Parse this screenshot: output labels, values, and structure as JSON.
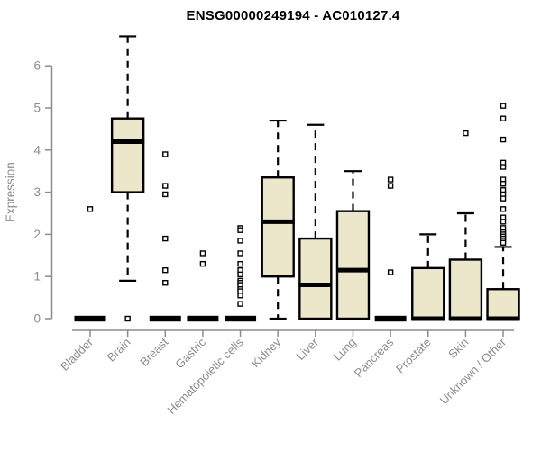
{
  "title": "ENSG00000249194 - AC010127.4",
  "chart_data": {
    "type": "boxplot",
    "title": "ENSG00000249194 - AC010127.4",
    "xlabel": "",
    "ylabel": "Expression",
    "ylim": [
      0,
      6.7
    ],
    "yticks": [
      0,
      1,
      2,
      3,
      4,
      5,
      6
    ],
    "grid": false,
    "legend": false,
    "categories": [
      "Bladder",
      "Brain",
      "Breast",
      "Gastric",
      "Hematopoietic cells",
      "Kidney",
      "Liver",
      "Lung",
      "Pancreas",
      "Prostate",
      "Skin",
      "Unknown / Other"
    ],
    "series": [
      {
        "category": "Bladder",
        "low": 0,
        "q1": 0,
        "median": 0,
        "q3": 0,
        "high": 0,
        "outliers": [
          2.6
        ]
      },
      {
        "category": "Brain",
        "low": 0.9,
        "q1": 3.0,
        "median": 4.2,
        "q3": 4.75,
        "high": 6.7,
        "outliers": [
          0
        ]
      },
      {
        "category": "Breast",
        "low": 0,
        "q1": 0,
        "median": 0,
        "q3": 0,
        "high": 0,
        "outliers": [
          3.9,
          3.15,
          2.95,
          1.9,
          1.15,
          0.85
        ]
      },
      {
        "category": "Gastric",
        "low": 0,
        "q1": 0,
        "median": 0,
        "q3": 0,
        "high": 0,
        "outliers": [
          1.55,
          1.3
        ]
      },
      {
        "category": "Hematopoietic cells",
        "low": 0,
        "q1": 0,
        "median": 0,
        "q3": 0,
        "high": 0,
        "outliers": [
          2.15,
          2.1,
          1.85,
          1.55,
          1.3,
          1.15,
          1.05,
          0.9,
          0.85,
          0.8,
          0.7,
          0.65,
          0.55,
          0.35
        ]
      },
      {
        "category": "Kidney",
        "low": 0,
        "q1": 1.0,
        "median": 2.3,
        "q3": 3.35,
        "high": 4.7,
        "outliers": []
      },
      {
        "category": "Liver",
        "low": 0,
        "q1": 0,
        "median": 0.8,
        "q3": 1.9,
        "high": 4.6,
        "outliers": []
      },
      {
        "category": "Lung",
        "low": 0,
        "q1": 0,
        "median": 1.15,
        "q3": 2.55,
        "high": 3.5,
        "outliers": []
      },
      {
        "category": "Pancreas",
        "low": 0,
        "q1": 0,
        "median": 0,
        "q3": 0,
        "high": 0,
        "outliers": [
          3.3,
          3.15,
          1.1
        ]
      },
      {
        "category": "Prostate",
        "low": 0,
        "q1": 0,
        "median": 0,
        "q3": 1.2,
        "high": 2.0,
        "outliers": []
      },
      {
        "category": "Skin",
        "low": 0,
        "q1": 0,
        "median": 0,
        "q3": 1.4,
        "high": 2.5,
        "outliers": [
          4.4
        ]
      },
      {
        "category": "Unknown / Other",
        "low": 0,
        "q1": 0,
        "median": 0,
        "q3": 0.7,
        "high": 1.7,
        "outliers": [
          5.05,
          4.75,
          4.25,
          3.7,
          3.6,
          3.3,
          3.2,
          3.05,
          2.95,
          2.85,
          2.6,
          2.4,
          2.3,
          2.15,
          2.05,
          2.0,
          1.95,
          1.9,
          1.85,
          1.8
        ]
      }
    ],
    "colors": {
      "box_fill": "#ECE6CB",
      "box_stroke": "#000000",
      "whisker": "#000000",
      "outlier_fill": "#ffffff",
      "axis": "#8C8C8C",
      "label": "#8C8C8C",
      "title": "#000000",
      "background": "#ffffff"
    }
  }
}
